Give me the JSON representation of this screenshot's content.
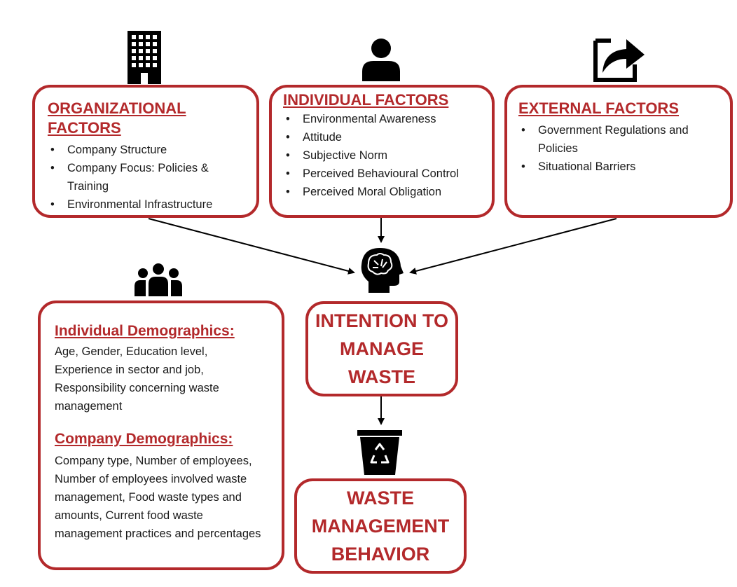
{
  "organizational": {
    "title": "ORGANIZATIONAL FACTORS",
    "items": [
      "Company Structure",
      "Company Focus: Policies & Training",
      "Environmental Infrastructure"
    ]
  },
  "individual": {
    "title": "INDIVIDUAL FACTORS",
    "items": [
      "Environmental Awareness",
      "Attitude",
      "Subjective Norm",
      "Perceived Behavioural Control",
      "Perceived Moral Obligation"
    ]
  },
  "external": {
    "title": "EXTERNAL FACTORS",
    "items": [
      "Government Regulations and Policies",
      "Situational Barriers"
    ]
  },
  "intention": {
    "title": "INTENTION TO MANAGE WASTE"
  },
  "behavior": {
    "title": "WASTE MANAGEMENT BEHAVIOR"
  },
  "demographics": {
    "individual_title": "Individual Demographics:",
    "individual_text": "Age, Gender, Education level, Experience in sector and job, Responsibility concerning waste management",
    "company_title": "Company Demographics:",
    "company_text": "Company type, Number of employees, Number of employees involved waste management, Food waste types and amounts, Current food waste management practices and percentages"
  },
  "icons": {
    "organizational": "building-icon",
    "individual": "person-icon",
    "external": "share-arrow-icon",
    "intention": "brain-head-icon",
    "demographics": "group-icon",
    "behavior": "recycle-bin-icon"
  },
  "colors": {
    "accent": "#b3292b",
    "text": "#1a1a1a",
    "icon": "#000000"
  }
}
